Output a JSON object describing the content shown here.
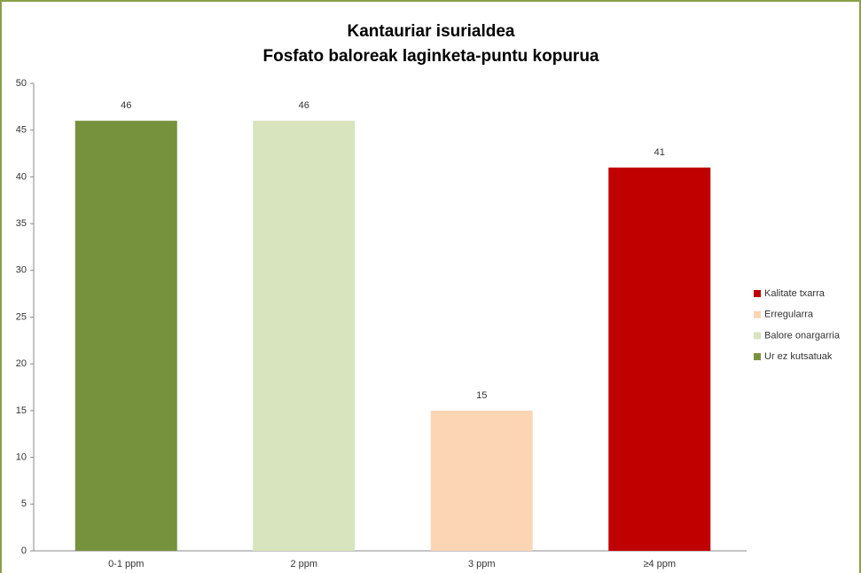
{
  "chart_data": {
    "type": "bar",
    "title": [
      "Kantauriar isurialdea",
      "Fosfato baloreak laginketa-puntu kopurua"
    ],
    "categories": [
      "0-1 ppm",
      "2 ppm",
      "3 ppm",
      "≥4 ppm"
    ],
    "series": [
      {
        "name": "Ur ez kutsatuak",
        "color": "#76923c",
        "values": [
          46,
          null,
          null,
          null
        ]
      },
      {
        "name": "Balore onargarria",
        "color": "#d7e4bd",
        "values": [
          null,
          46,
          null,
          null
        ]
      },
      {
        "name": "Erregularra",
        "color": "#fcd5b5",
        "values": [
          null,
          null,
          15,
          null
        ]
      },
      {
        "name": "Kalitate txarra",
        "color": "#c00000",
        "values": [
          null,
          null,
          null,
          41
        ]
      }
    ],
    "ylim": [
      0,
      50
    ],
    "yticks": [
      0,
      5,
      10,
      15,
      20,
      25,
      30,
      35,
      40,
      45,
      50
    ],
    "grid": false,
    "legend": "right"
  }
}
